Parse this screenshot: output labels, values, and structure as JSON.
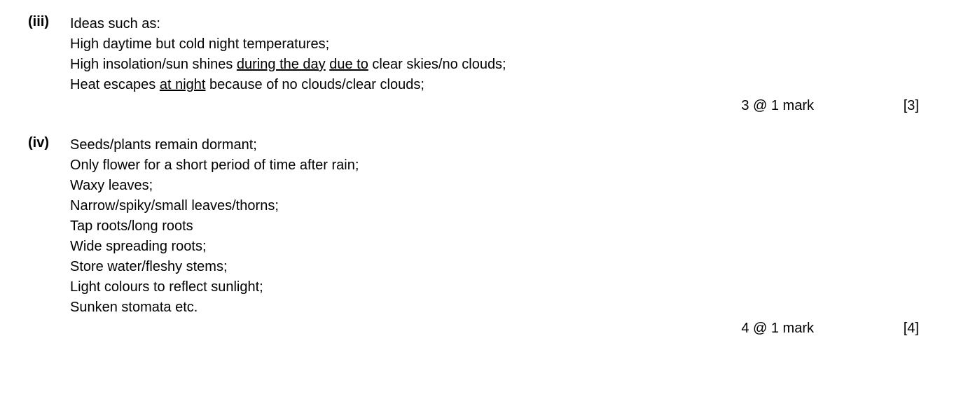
{
  "questions": [
    {
      "number": "(iii)",
      "lines": [
        {
          "segments": [
            {
              "text": "Ideas such as:",
              "underline": false
            }
          ]
        },
        {
          "segments": [
            {
              "text": "High daytime but cold night temperatures;",
              "underline": false
            }
          ]
        },
        {
          "segments": [
            {
              "text": "High insolation/sun shines ",
              "underline": false
            },
            {
              "text": "during the day",
              "underline": true
            },
            {
              "text": " ",
              "underline": false
            },
            {
              "text": "due to",
              "underline": true
            },
            {
              "text": " clear skies/no clouds;",
              "underline": false
            }
          ]
        },
        {
          "segments": [
            {
              "text": "Heat escapes ",
              "underline": false
            },
            {
              "text": "at night",
              "underline": true
            },
            {
              "text": " because of no clouds/clear clouds;",
              "underline": false
            }
          ]
        }
      ],
      "marks_text": "3 @ 1 mark",
      "marks_bracket": "[3]"
    },
    {
      "number": "(iv)",
      "lines": [
        {
          "segments": [
            {
              "text": "Seeds/plants remain dormant;",
              "underline": false
            }
          ]
        },
        {
          "segments": [
            {
              "text": "Only flower for a short period of time after rain;",
              "underline": false
            }
          ]
        },
        {
          "segments": [
            {
              "text": "Waxy leaves;",
              "underline": false
            }
          ]
        },
        {
          "segments": [
            {
              "text": "Narrow/spiky/small leaves/thorns;",
              "underline": false
            }
          ]
        },
        {
          "segments": [
            {
              "text": "Tap roots/long roots",
              "underline": false
            }
          ]
        },
        {
          "segments": [
            {
              "text": "Wide spreading roots;",
              "underline": false
            }
          ]
        },
        {
          "segments": [
            {
              "text": "Store water/fleshy stems;",
              "underline": false
            }
          ]
        },
        {
          "segments": [
            {
              "text": "Light colours to reflect sunlight;",
              "underline": false
            }
          ]
        },
        {
          "segments": [
            {
              "text": "Sunken stomata etc.",
              "underline": false
            }
          ]
        }
      ],
      "marks_text": "4 @ 1 mark",
      "marks_bracket": "[4]"
    }
  ]
}
